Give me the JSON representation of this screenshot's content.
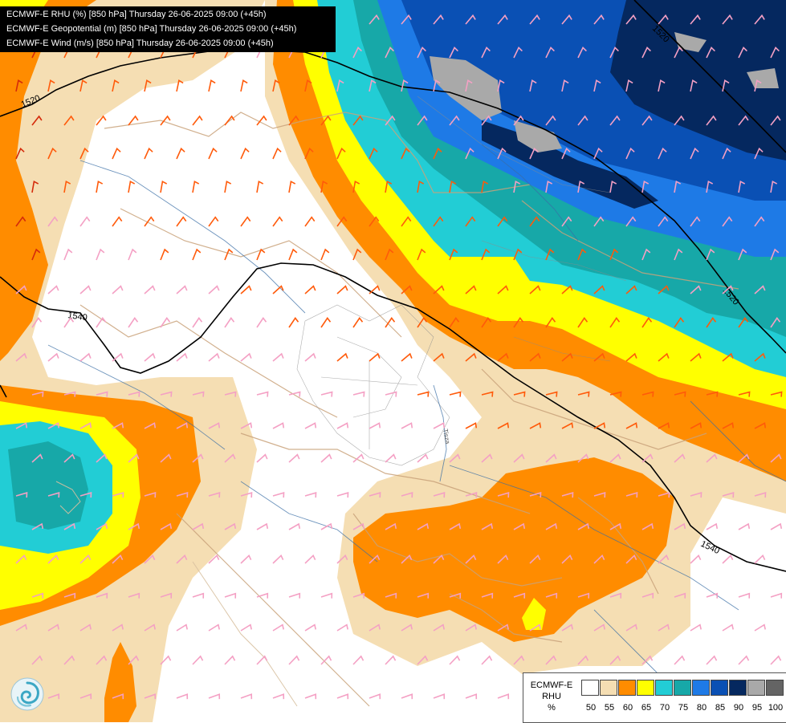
{
  "header": {
    "lines": [
      "ECMWF-E RHU (%) [850 hPa] Thursday 26-06-2025 09:00 (+45h)",
      "ECMWF-E Geopotential (m) [850 hPa] Thursday 26-06-2025 09:00 (+45h)",
      "ECMWF-E Wind (m/s) [850 hPa] Thursday 26-06-2025 09:00 (+45h)"
    ]
  },
  "legend": {
    "title_lines": [
      "ECMWF-E",
      "RHU",
      "%"
    ],
    "colors": [
      "#ffffff",
      "#f5deb3",
      "#ff8c00",
      "#ffff00",
      "#22cdd5",
      "#17a8a8",
      "#1e7ae6",
      "#0a50b4",
      "#05285f",
      "#a9a9a9",
      "#646464"
    ],
    "labels": [
      "50",
      "55",
      "60",
      "65",
      "70",
      "75",
      "80",
      "85",
      "90",
      "95",
      "100"
    ]
  },
  "contours": {
    "labels": [
      "1520",
      "1540",
      "1520",
      "1540",
      "1520"
    ]
  },
  "map_text": {
    "river": "Tisza"
  },
  "icons": {
    "logo": "swirl-logo-icon"
  }
}
